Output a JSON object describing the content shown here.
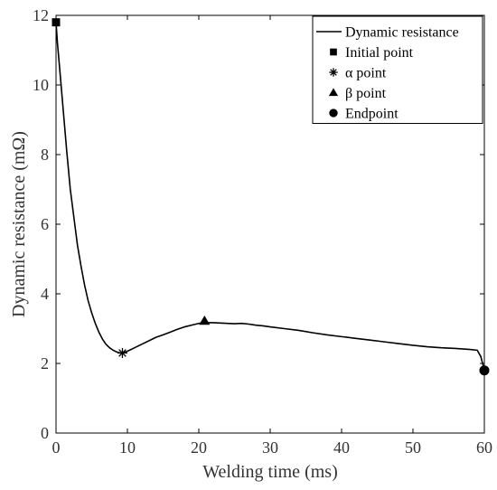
{
  "chart_data": {
    "type": "line",
    "xlabel": "Welding time (ms)",
    "ylabel": "Dynamic resistance (mΩ)",
    "xlim": [
      0,
      60
    ],
    "ylim": [
      0,
      12
    ],
    "xticks": [
      "0",
      "10",
      "20",
      "30",
      "40",
      "50",
      "60"
    ],
    "yticks": [
      "0",
      "2",
      "4",
      "6",
      "8",
      "10",
      "12"
    ],
    "grid": false,
    "legend_position": "top-right",
    "series": [
      {
        "name": "Dynamic resistance",
        "style": "line",
        "x": [
          0,
          0.2,
          0.5,
          1,
          1.5,
          2,
          2.5,
          3,
          3.5,
          4,
          4.5,
          5,
          5.5,
          6,
          6.5,
          7,
          7.5,
          8,
          8.5,
          9,
          9.3,
          10,
          11,
          12,
          13,
          14,
          15,
          16,
          17,
          18,
          19,
          20,
          21,
          22,
          23,
          24,
          25,
          26,
          27,
          28,
          29,
          30,
          32,
          34,
          36,
          38,
          40,
          42,
          44,
          46,
          48,
          50,
          52,
          54,
          56,
          58,
          59,
          59.5,
          60
        ],
        "y": [
          11.8,
          11.2,
          10.5,
          9.3,
          8.1,
          7.0,
          6.2,
          5.4,
          4.8,
          4.25,
          3.8,
          3.45,
          3.15,
          2.9,
          2.7,
          2.55,
          2.45,
          2.38,
          2.33,
          2.3,
          2.3,
          2.35,
          2.45,
          2.55,
          2.65,
          2.75,
          2.82,
          2.9,
          2.98,
          3.05,
          3.1,
          3.15,
          3.17,
          3.17,
          3.16,
          3.15,
          3.14,
          3.15,
          3.13,
          3.1,
          3.08,
          3.05,
          3.0,
          2.95,
          2.88,
          2.82,
          2.77,
          2.72,
          2.67,
          2.62,
          2.57,
          2.52,
          2.48,
          2.45,
          2.43,
          2.4,
          2.38,
          2.2,
          1.8
        ]
      },
      {
        "name": "Initial point",
        "marker": "square",
        "x": [
          0
        ],
        "y": [
          11.8
        ]
      },
      {
        "name": "α point",
        "marker": "asterisk",
        "x": [
          9.3
        ],
        "y": [
          2.3
        ]
      },
      {
        "name": "β point",
        "marker": "triangle",
        "x": [
          20.8
        ],
        "y": [
          3.22
        ]
      },
      {
        "name": "Endpoint",
        "marker": "circle",
        "x": [
          60
        ],
        "y": [
          1.8
        ]
      }
    ]
  }
}
